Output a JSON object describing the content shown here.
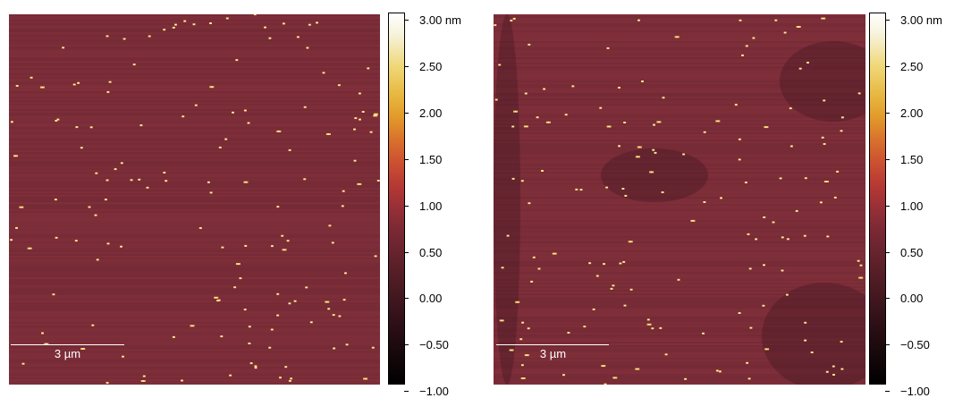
{
  "panels": [
    {
      "id": "left",
      "scale_bar": {
        "label": "3 µm"
      },
      "colorbar": {
        "ticks": [
          "3.00 nm",
          "2.50",
          "2.00",
          "1.50",
          "1.00",
          "0.50",
          "0.00",
          "−0.50",
          "−1.00"
        ]
      }
    },
    {
      "id": "right",
      "scale_bar": {
        "label": "3 µm"
      },
      "colorbar": {
        "ticks": [
          "3.00 nm",
          "2.50",
          "2.00",
          "1.50",
          "1.00",
          "0.50",
          "0.00",
          "−0.50",
          "−1.00"
        ]
      }
    }
  ],
  "colors": {
    "background": "#7a2d38",
    "particle_hot": "#f5d060",
    "particle_core": "#ffffff"
  }
}
